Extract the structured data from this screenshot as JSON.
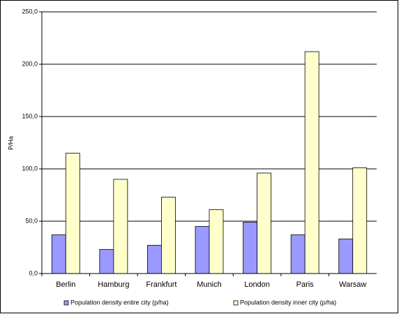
{
  "chart_data": {
    "type": "bar",
    "y_label": "P/Ha",
    "categories": [
      "Berlin",
      "Hamburg",
      "Frankfurt",
      "Munich",
      "London",
      "Paris",
      "Warsaw"
    ],
    "series": [
      {
        "name": "Population density entire city (p/ha)",
        "color": "#9999ff",
        "values": [
          37,
          23,
          27,
          45,
          49,
          37,
          33
        ]
      },
      {
        "name": "Population density inner city (p/ha)",
        "color": "#ffffcc",
        "values": [
          115,
          90,
          73,
          61,
          96,
          212,
          101
        ]
      }
    ],
    "ylim": [
      0,
      250
    ],
    "yticks": [
      {
        "value": 0,
        "label": "0,0"
      },
      {
        "value": 50,
        "label": "50,0"
      },
      {
        "value": 100,
        "label": "100,0"
      },
      {
        "value": 150,
        "label": "150,0"
      },
      {
        "value": 200,
        "label": "200,0"
      },
      {
        "value": 250,
        "label": "250,0"
      }
    ],
    "grid": true
  }
}
